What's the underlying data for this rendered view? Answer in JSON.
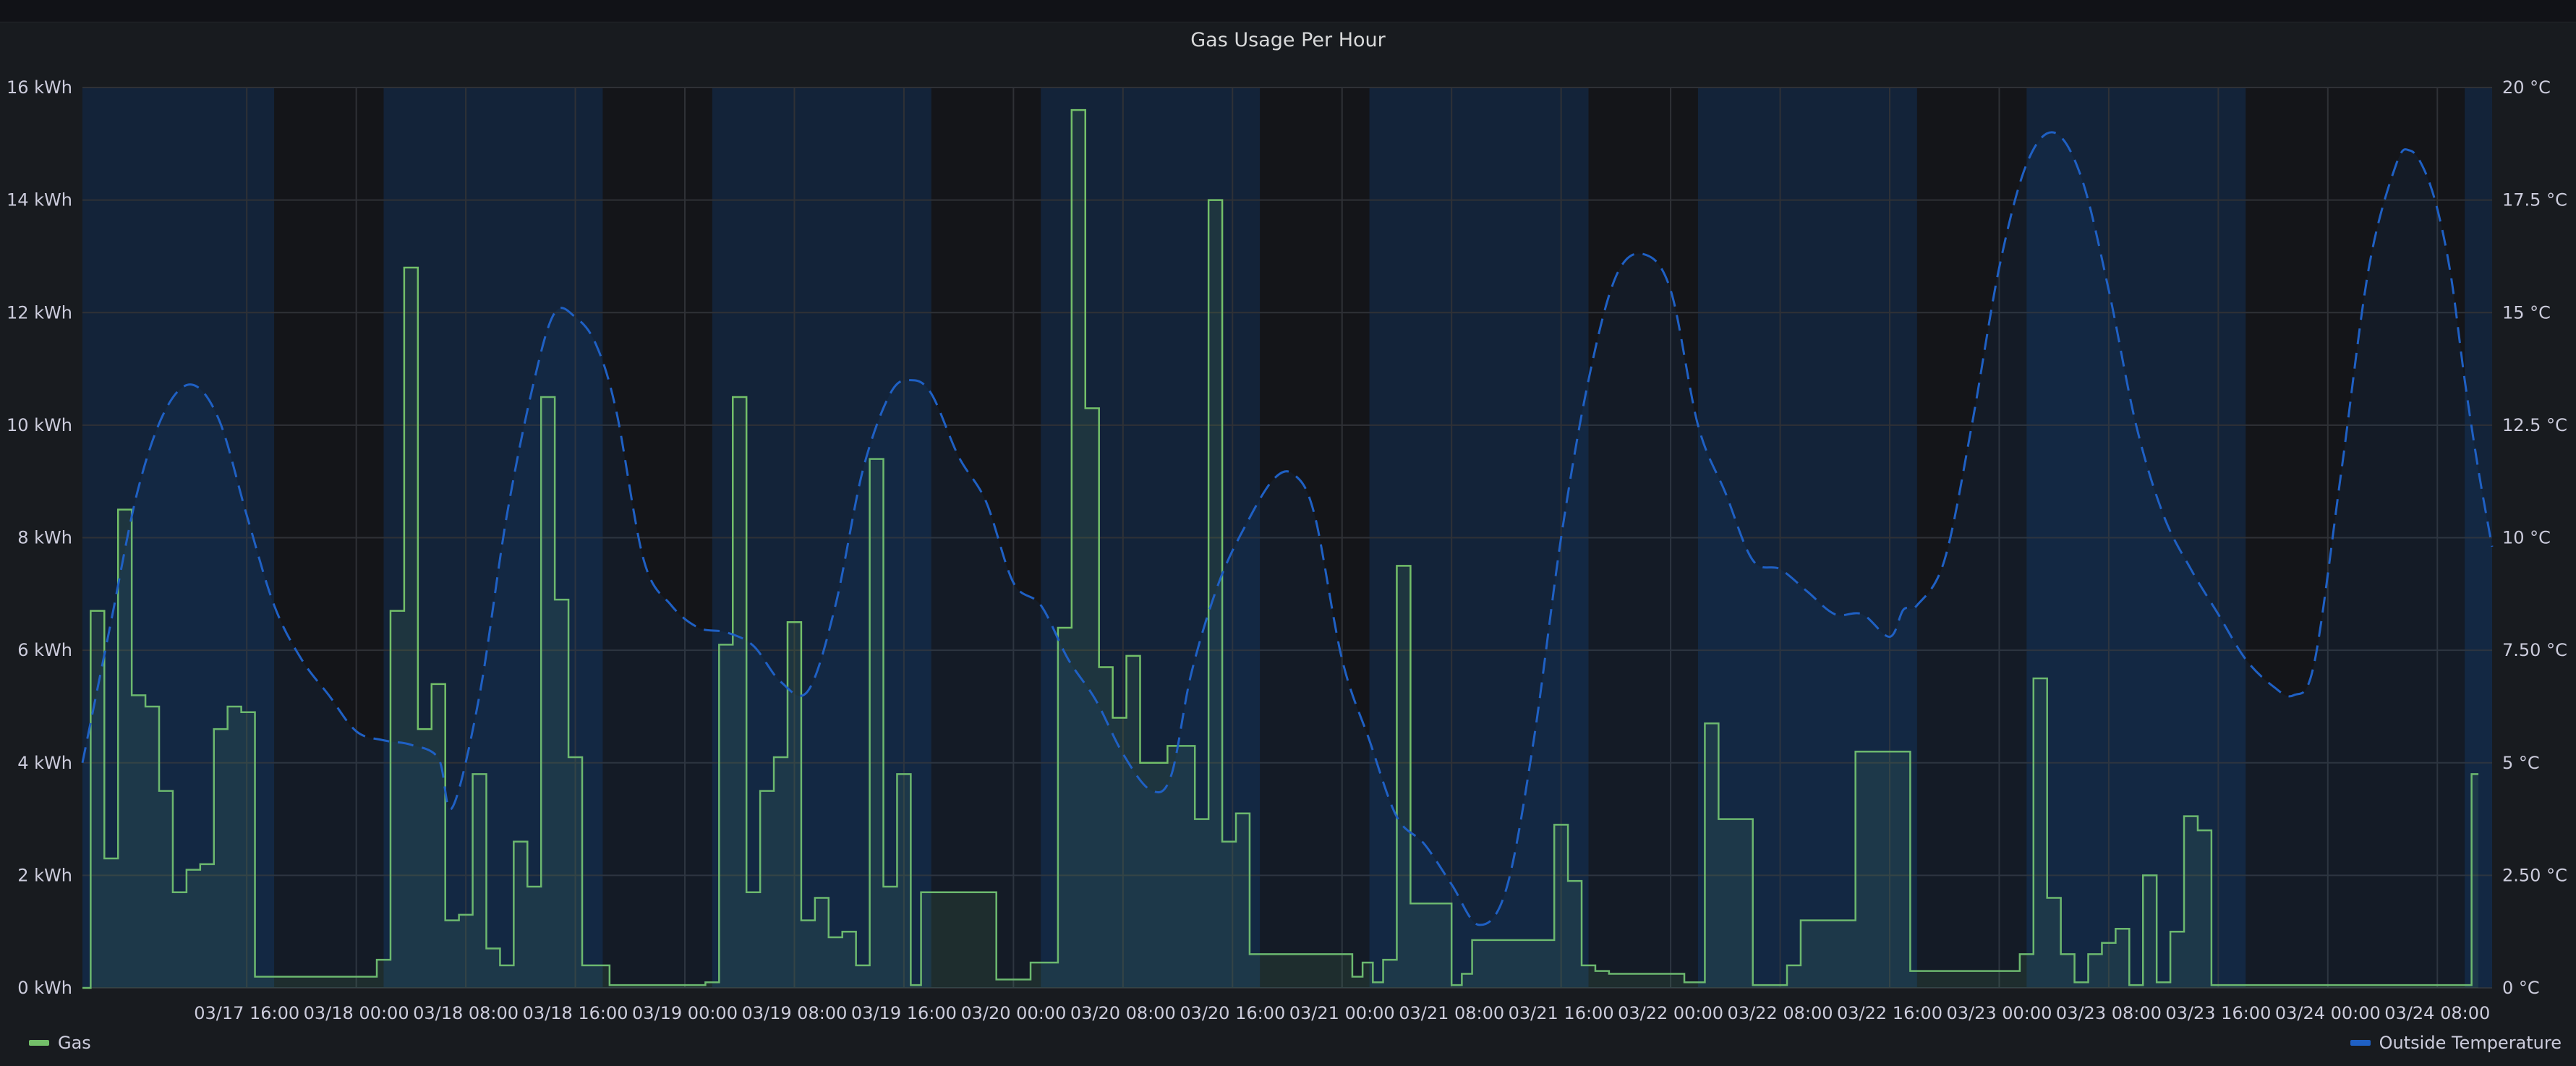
{
  "panel": {
    "title": "Gas Usage Per Hour"
  },
  "colors": {
    "gas": "#73bf69",
    "temperature": "#1f60c4",
    "daylight_band": "#132339",
    "night_band": "#141519",
    "grid": "#2f3136",
    "text": "#ccccdc"
  },
  "legend": {
    "gas": "Gas",
    "temperature": "Outside Temperature"
  },
  "chart_data": {
    "type": "line",
    "title": "Gas Usage Per Hour",
    "x_start": "2022-03-17T04:00",
    "x_end": "2022-03-24T12:00",
    "x_ticks": [
      "03/17 16:00",
      "03/18 00:00",
      "03/18 08:00",
      "03/18 16:00",
      "03/19 00:00",
      "03/19 08:00",
      "03/19 16:00",
      "03/20 00:00",
      "03/20 08:00",
      "03/20 16:00",
      "03/21 00:00",
      "03/21 08:00",
      "03/21 16:00",
      "03/22 00:00",
      "03/22 08:00",
      "03/22 16:00",
      "03/23 00:00",
      "03/23 08:00",
      "03/23 16:00",
      "03/24 00:00",
      "03/24 08:00"
    ],
    "x_tick_times": [
      "2022-03-17T16:00",
      "2022-03-18T00:00",
      "2022-03-18T08:00",
      "2022-03-18T16:00",
      "2022-03-19T00:00",
      "2022-03-19T08:00",
      "2022-03-19T16:00",
      "2022-03-20T00:00",
      "2022-03-20T08:00",
      "2022-03-20T16:00",
      "2022-03-21T00:00",
      "2022-03-21T08:00",
      "2022-03-21T16:00",
      "2022-03-22T00:00",
      "2022-03-22T08:00",
      "2022-03-22T16:00",
      "2022-03-23T00:00",
      "2022-03-23T08:00",
      "2022-03-23T16:00",
      "2022-03-24T00:00",
      "2022-03-24T08:00"
    ],
    "y_left": {
      "label": "",
      "unit": "kWh",
      "range": [
        0,
        16
      ],
      "ticks": [
        "0 kWh",
        "2 kWh",
        "4 kWh",
        "6 kWh",
        "8 kWh",
        "10 kWh",
        "12 kWh",
        "14 kWh",
        "16 kWh"
      ]
    },
    "y_right": {
      "label": "",
      "unit": "°C",
      "range": [
        0,
        20
      ],
      "ticks": [
        "0 °C",
        "2.50 °C",
        "5 °C",
        "7.50 °C",
        "10 °C",
        "12.5 °C",
        "15 °C",
        "17.5 °C",
        "20 °C"
      ]
    },
    "grid": true,
    "legend_position": "bottom",
    "daylight_bands": [
      [
        "2022-03-17T04:00",
        "2022-03-17T18:00"
      ],
      [
        "2022-03-18T02:00",
        "2022-03-18T18:00"
      ],
      [
        "2022-03-19T02:00",
        "2022-03-19T18:00"
      ],
      [
        "2022-03-20T02:00",
        "2022-03-20T18:00"
      ],
      [
        "2022-03-21T02:00",
        "2022-03-21T18:00"
      ],
      [
        "2022-03-22T02:00",
        "2022-03-22T18:00"
      ],
      [
        "2022-03-23T02:00",
        "2022-03-23T18:00"
      ],
      [
        "2022-03-24T10:00",
        "2022-03-24T12:00"
      ]
    ],
    "series": [
      {
        "name": "Gas",
        "style": "step-area",
        "axis": "left",
        "points": [
          [
            "2022-03-17T04:00",
            0.0
          ],
          [
            "2022-03-17T04:36",
            6.7
          ],
          [
            "2022-03-17T05:36",
            2.3
          ],
          [
            "2022-03-17T06:36",
            8.5
          ],
          [
            "2022-03-17T07:36",
            5.2
          ],
          [
            "2022-03-17T08:36",
            5.0
          ],
          [
            "2022-03-17T09:36",
            3.5
          ],
          [
            "2022-03-17T10:36",
            1.7
          ],
          [
            "2022-03-17T11:36",
            2.1
          ],
          [
            "2022-03-17T12:36",
            2.2
          ],
          [
            "2022-03-17T13:36",
            4.6
          ],
          [
            "2022-03-17T14:36",
            5.0
          ],
          [
            "2022-03-17T15:36",
            4.9
          ],
          [
            "2022-03-17T16:36",
            0.2
          ],
          [
            "2022-03-18T01:30",
            0.5
          ],
          [
            "2022-03-18T02:30",
            6.7
          ],
          [
            "2022-03-18T03:30",
            12.8
          ],
          [
            "2022-03-18T04:30",
            4.6
          ],
          [
            "2022-03-18T05:30",
            5.4
          ],
          [
            "2022-03-18T06:30",
            1.2
          ],
          [
            "2022-03-18T07:30",
            1.3
          ],
          [
            "2022-03-18T08:30",
            3.8
          ],
          [
            "2022-03-18T09:30",
            0.7
          ],
          [
            "2022-03-18T10:30",
            0.4
          ],
          [
            "2022-03-18T11:30",
            2.6
          ],
          [
            "2022-03-18T12:30",
            1.8
          ],
          [
            "2022-03-18T13:30",
            10.5
          ],
          [
            "2022-03-18T14:30",
            6.9
          ],
          [
            "2022-03-18T15:30",
            4.1
          ],
          [
            "2022-03-18T16:30",
            0.4
          ],
          [
            "2022-03-18T18:30",
            0.05
          ],
          [
            "2022-03-19T01:30",
            0.1
          ],
          [
            "2022-03-19T02:30",
            6.1
          ],
          [
            "2022-03-19T03:30",
            10.5
          ],
          [
            "2022-03-19T04:30",
            1.7
          ],
          [
            "2022-03-19T05:30",
            3.5
          ],
          [
            "2022-03-19T06:30",
            4.1
          ],
          [
            "2022-03-19T07:30",
            6.5
          ],
          [
            "2022-03-19T08:30",
            1.2
          ],
          [
            "2022-03-19T09:30",
            1.6
          ],
          [
            "2022-03-19T10:30",
            0.9
          ],
          [
            "2022-03-19T11:30",
            1.0
          ],
          [
            "2022-03-19T12:30",
            0.4
          ],
          [
            "2022-03-19T13:30",
            9.4
          ],
          [
            "2022-03-19T14:30",
            1.8
          ],
          [
            "2022-03-19T15:30",
            3.8
          ],
          [
            "2022-03-19T16:30",
            0.05
          ],
          [
            "2022-03-19T17:15",
            1.7
          ],
          [
            "2022-03-19T22:45",
            0.15
          ],
          [
            "2022-03-20T01:15",
            0.45
          ],
          [
            "2022-03-20T03:15",
            6.4
          ],
          [
            "2022-03-20T04:15",
            15.6
          ],
          [
            "2022-03-20T05:15",
            10.3
          ],
          [
            "2022-03-20T06:15",
            5.7
          ],
          [
            "2022-03-20T07:15",
            4.8
          ],
          [
            "2022-03-20T08:15",
            5.9
          ],
          [
            "2022-03-20T09:15",
            4.0
          ],
          [
            "2022-03-20T10:15",
            4.0
          ],
          [
            "2022-03-20T11:15",
            4.3
          ],
          [
            "2022-03-20T12:15",
            4.3
          ],
          [
            "2022-03-20T13:15",
            3.0
          ],
          [
            "2022-03-20T14:15",
            14.0
          ],
          [
            "2022-03-20T15:15",
            2.6
          ],
          [
            "2022-03-20T16:15",
            3.1
          ],
          [
            "2022-03-20T17:15",
            0.6
          ],
          [
            "2022-03-21T00:45",
            0.2
          ],
          [
            "2022-03-21T01:30",
            0.45
          ],
          [
            "2022-03-21T02:15",
            0.1
          ],
          [
            "2022-03-21T03:00",
            0.5
          ],
          [
            "2022-03-21T04:00",
            7.5
          ],
          [
            "2022-03-21T05:00",
            1.5
          ],
          [
            "2022-03-21T08:00",
            0.05
          ],
          [
            "2022-03-21T08:45",
            0.25
          ],
          [
            "2022-03-21T09:30",
            0.85
          ],
          [
            "2022-03-21T15:30",
            2.9
          ],
          [
            "2022-03-21T16:30",
            1.9
          ],
          [
            "2022-03-21T17:30",
            0.4
          ],
          [
            "2022-03-21T18:30",
            0.3
          ],
          [
            "2022-03-21T19:30",
            0.25
          ],
          [
            "2022-03-22T01:00",
            0.1
          ],
          [
            "2022-03-22T02:30",
            4.7
          ],
          [
            "2022-03-22T03:30",
            3.0
          ],
          [
            "2022-03-22T06:00",
            0.05
          ],
          [
            "2022-03-22T08:30",
            0.4
          ],
          [
            "2022-03-22T09:30",
            1.2
          ],
          [
            "2022-03-22T13:30",
            4.2
          ],
          [
            "2022-03-22T17:30",
            0.3
          ],
          [
            "2022-03-23T01:30",
            0.6
          ],
          [
            "2022-03-23T02:30",
            5.5
          ],
          [
            "2022-03-23T03:30",
            1.6
          ],
          [
            "2022-03-23T04:30",
            0.6
          ],
          [
            "2022-03-23T05:30",
            0.1
          ],
          [
            "2022-03-23T06:30",
            0.6
          ],
          [
            "2022-03-23T07:30",
            0.8
          ],
          [
            "2022-03-23T08:30",
            1.05
          ],
          [
            "2022-03-23T09:30",
            0.05
          ],
          [
            "2022-03-23T10:30",
            2.0
          ],
          [
            "2022-03-23T11:30",
            0.1
          ],
          [
            "2022-03-23T12:30",
            1.0
          ],
          [
            "2022-03-23T13:30",
            3.05
          ],
          [
            "2022-03-23T14:30",
            2.8
          ],
          [
            "2022-03-23T15:30",
            0.05
          ],
          [
            "2022-03-24T10:30",
            3.8
          ],
          [
            "2022-03-24T11:00",
            3.8
          ]
        ]
      },
      {
        "name": "Outside Temperature",
        "style": "dashed-line",
        "axis": "right",
        "points": [
          [
            "2022-03-17T04:00",
            5.0
          ],
          [
            "2022-03-17T06:00",
            8.0
          ],
          [
            "2022-03-17T08:00",
            11.0
          ],
          [
            "2022-03-17T10:00",
            12.8
          ],
          [
            "2022-03-17T12:00",
            13.4
          ],
          [
            "2022-03-17T14:00",
            12.6
          ],
          [
            "2022-03-17T16:00",
            10.5
          ],
          [
            "2022-03-17T18:00",
            8.5
          ],
          [
            "2022-03-17T20:00",
            7.3
          ],
          [
            "2022-03-17T22:00",
            6.5
          ],
          [
            "2022-03-18T00:00",
            5.7
          ],
          [
            "2022-03-18T02:00",
            5.5
          ],
          [
            "2022-03-18T04:00",
            5.4
          ],
          [
            "2022-03-18T06:00",
            5.1
          ],
          [
            "2022-03-18T07:00",
            4.0
          ],
          [
            "2022-03-18T09:00",
            6.5
          ],
          [
            "2022-03-18T11:00",
            10.5
          ],
          [
            "2022-03-18T13:00",
            13.5
          ],
          [
            "2022-03-18T14:30",
            15.0
          ],
          [
            "2022-03-18T16:00",
            14.9
          ],
          [
            "2022-03-18T17:30",
            14.3
          ],
          [
            "2022-03-18T19:00",
            12.8
          ],
          [
            "2022-03-18T21:00",
            9.5
          ],
          [
            "2022-03-18T23:00",
            8.5
          ],
          [
            "2022-03-19T01:00",
            8.0
          ],
          [
            "2022-03-19T03:00",
            7.9
          ],
          [
            "2022-03-19T05:00",
            7.6
          ],
          [
            "2022-03-19T07:00",
            6.8
          ],
          [
            "2022-03-19T09:00",
            6.6
          ],
          [
            "2022-03-19T11:00",
            8.5
          ],
          [
            "2022-03-19T13:00",
            11.5
          ],
          [
            "2022-03-19T15:00",
            13.2
          ],
          [
            "2022-03-19T16:30",
            13.5
          ],
          [
            "2022-03-19T18:00",
            13.2
          ],
          [
            "2022-03-19T20:00",
            11.8
          ],
          [
            "2022-03-19T22:00",
            10.8
          ],
          [
            "2022-03-20T00:00",
            9.0
          ],
          [
            "2022-03-20T02:00",
            8.5
          ],
          [
            "2022-03-20T04:00",
            7.3
          ],
          [
            "2022-03-20T06:00",
            6.4
          ],
          [
            "2022-03-20T08:00",
            5.2
          ],
          [
            "2022-03-20T10:00",
            4.4
          ],
          [
            "2022-03-20T11:30",
            4.7
          ],
          [
            "2022-03-20T13:00",
            7.0
          ],
          [
            "2022-03-20T15:00",
            9.0
          ],
          [
            "2022-03-20T17:00",
            10.3
          ],
          [
            "2022-03-20T19:00",
            11.3
          ],
          [
            "2022-03-20T20:30",
            11.4
          ],
          [
            "2022-03-20T22:00",
            10.5
          ],
          [
            "2022-03-21T00:00",
            7.3
          ],
          [
            "2022-03-21T02:00",
            5.5
          ],
          [
            "2022-03-21T04:00",
            3.8
          ],
          [
            "2022-03-21T06:00",
            3.2
          ],
          [
            "2022-03-21T08:00",
            2.3
          ],
          [
            "2022-03-21T10:00",
            1.4
          ],
          [
            "2022-03-21T12:00",
            2.2
          ],
          [
            "2022-03-21T14:00",
            5.5
          ],
          [
            "2022-03-21T16:00",
            10.0
          ],
          [
            "2022-03-21T18:00",
            13.5
          ],
          [
            "2022-03-21T20:00",
            15.8
          ],
          [
            "2022-03-21T22:00",
            16.3
          ],
          [
            "2022-03-22T00:00",
            15.5
          ],
          [
            "2022-03-22T02:00",
            12.5
          ],
          [
            "2022-03-22T04:00",
            11.0
          ],
          [
            "2022-03-22T06:00",
            9.5
          ],
          [
            "2022-03-22T08:00",
            9.3
          ],
          [
            "2022-03-22T10:00",
            8.8
          ],
          [
            "2022-03-22T12:00",
            8.3
          ],
          [
            "2022-03-22T14:00",
            8.3
          ],
          [
            "2022-03-22T16:00",
            7.8
          ],
          [
            "2022-03-22T17:00",
            8.4
          ],
          [
            "2022-03-22T18:00",
            8.5
          ],
          [
            "2022-03-22T20:00",
            9.5
          ],
          [
            "2022-03-22T22:00",
            12.5
          ],
          [
            "2022-03-23T00:00",
            16.0
          ],
          [
            "2022-03-23T02:00",
            18.3
          ],
          [
            "2022-03-23T04:00",
            19.0
          ],
          [
            "2022-03-23T06:00",
            18.0
          ],
          [
            "2022-03-23T08:00",
            15.5
          ],
          [
            "2022-03-23T10:00",
            12.5
          ],
          [
            "2022-03-23T12:00",
            10.5
          ],
          [
            "2022-03-23T14:00",
            9.3
          ],
          [
            "2022-03-23T16:00",
            8.3
          ],
          [
            "2022-03-23T18:00",
            7.3
          ],
          [
            "2022-03-23T20:00",
            6.7
          ],
          [
            "2022-03-23T21:30",
            6.5
          ],
          [
            "2022-03-23T23:00",
            7.2
          ],
          [
            "2022-03-24T01:00",
            11.5
          ],
          [
            "2022-03-24T03:00",
            16.0
          ],
          [
            "2022-03-24T05:00",
            18.3
          ],
          [
            "2022-03-24T06:00",
            18.6
          ],
          [
            "2022-03-24T07:00",
            18.2
          ],
          [
            "2022-03-24T08:00",
            17.3
          ],
          [
            "2022-03-24T09:00",
            15.8
          ],
          [
            "2022-03-24T10:00",
            13.5
          ],
          [
            "2022-03-24T11:00",
            11.5
          ],
          [
            "2022-03-24T12:00",
            9.8
          ]
        ]
      }
    ]
  }
}
